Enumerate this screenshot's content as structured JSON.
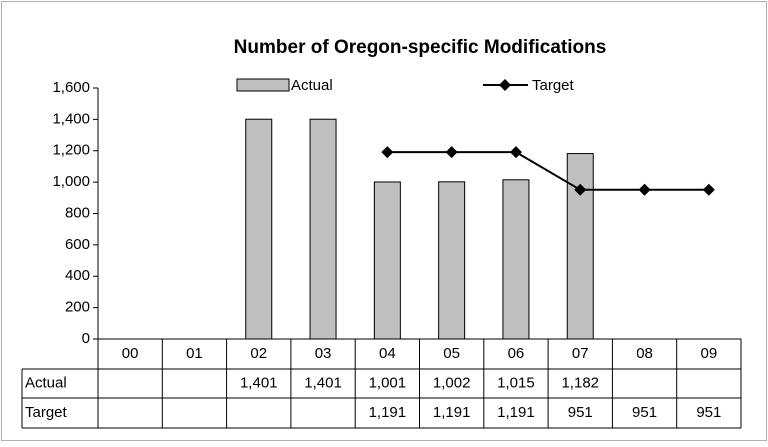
{
  "chart_data": {
    "type": "bar",
    "title": "Number of Oregon-specific Modifications",
    "categories": [
      "00",
      "01",
      "02",
      "03",
      "04",
      "05",
      "06",
      "07",
      "08",
      "09"
    ],
    "series": [
      {
        "name": "Actual",
        "type": "bar",
        "color": "#c0c0c0",
        "values": [
          null,
          null,
          1401,
          1401,
          1001,
          1002,
          1015,
          1182,
          null,
          null
        ],
        "value_labels": [
          null,
          null,
          "1,401",
          "1,401",
          "1,001",
          "1,002",
          "1,015",
          "1,182",
          null,
          null
        ]
      },
      {
        "name": "Target",
        "type": "line",
        "color": "#000000",
        "values": [
          null,
          null,
          null,
          null,
          1191,
          1191,
          1191,
          951,
          951,
          951
        ],
        "value_labels": [
          null,
          null,
          null,
          null,
          "1,191",
          "1,191",
          "1,191",
          "951",
          "951",
          "951"
        ]
      }
    ],
    "ylim": [
      0,
      1600
    ],
    "yticks": [
      0,
      200,
      400,
      600,
      800,
      {
        "value": 1000,
        "label": "1,000"
      },
      {
        "value": 1200,
        "label": "1,200"
      },
      {
        "value": 1400,
        "label": "1,400"
      },
      {
        "value": 1600,
        "label": "1,600"
      }
    ],
    "grid": false
  }
}
